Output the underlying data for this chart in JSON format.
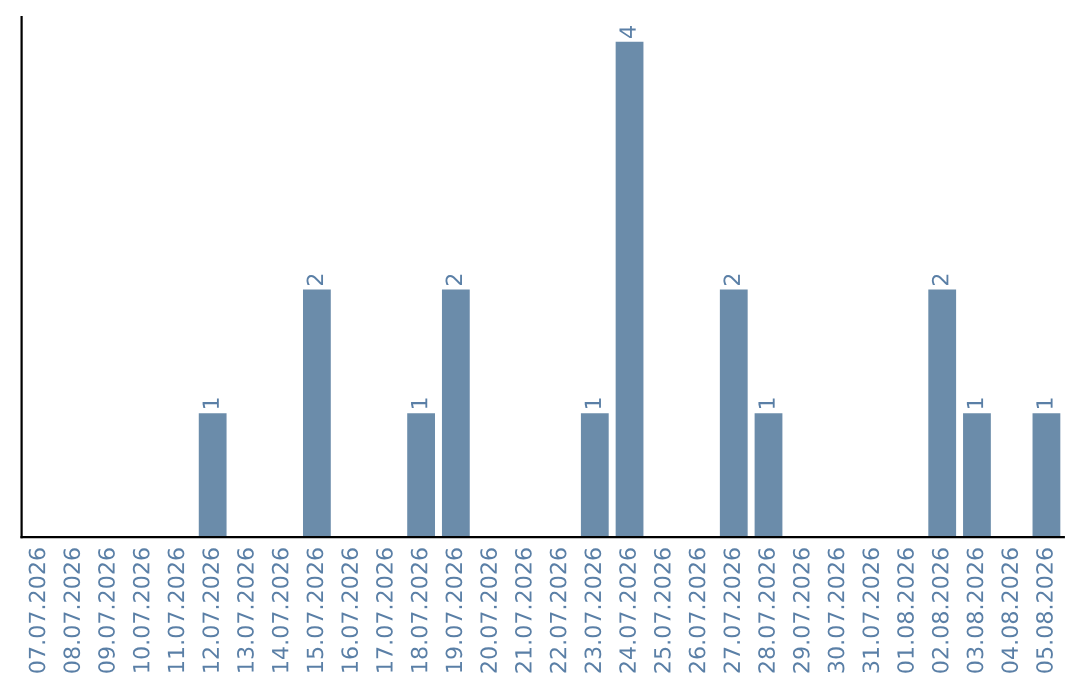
{
  "chart_data": {
    "type": "bar",
    "categories": [
      "07.07.2026",
      "08.07.2026",
      "09.07.2026",
      "10.07.2026",
      "11.07.2026",
      "12.07.2026",
      "13.07.2026",
      "14.07.2026",
      "15.07.2026",
      "16.07.2026",
      "17.07.2026",
      "18.07.2026",
      "19.07.2026",
      "20.07.2026",
      "21.07.2026",
      "22.07.2026",
      "23.07.2026",
      "24.07.2026",
      "25.07.2026",
      "26.07.2026",
      "27.07.2026",
      "28.07.2026",
      "29.07.2026",
      "30.07.2026",
      "31.07.2026",
      "01.08.2026",
      "02.08.2026",
      "03.08.2026",
      "04.08.2026",
      "05.08.2026"
    ],
    "values": [
      0,
      0,
      0,
      0,
      0,
      1,
      0,
      0,
      2,
      0,
      0,
      1,
      2,
      0,
      0,
      0,
      1,
      4,
      0,
      0,
      2,
      1,
      0,
      0,
      0,
      0,
      2,
      1,
      0,
      1
    ],
    "value_labels": [
      null,
      null,
      null,
      null,
      null,
      "1",
      null,
      null,
      "2",
      null,
      null,
      "1",
      "2",
      null,
      null,
      null,
      "1",
      "4",
      null,
      null,
      "2",
      "1",
      null,
      null,
      null,
      null,
      "2",
      "1",
      null,
      "1"
    ],
    "color": "#6b8caa",
    "tick_labels": "x"
  }
}
